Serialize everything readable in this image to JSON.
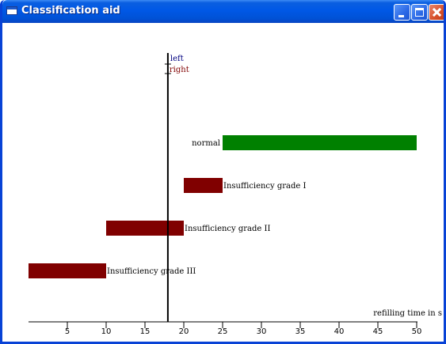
{
  "window": {
    "title": "Classification aid"
  },
  "chart_data": {
    "type": "bar",
    "title": "",
    "xlabel": "refilling time in s",
    "xlim": [
      0,
      50
    ],
    "x_ticks": [
      5,
      10,
      15,
      20,
      25,
      30,
      35,
      40,
      45,
      50
    ],
    "grid": false,
    "bars": [
      {
        "label": "normal",
        "start": 25,
        "end": 50,
        "color": "#008000"
      },
      {
        "label": "Insufficiency grade I",
        "start": 20,
        "end": 25,
        "color": "#800000"
      },
      {
        "label": "Insufficiency grade II",
        "start": 10,
        "end": 20,
        "color": "#800000"
      },
      {
        "label": "Insufficiency grade III",
        "start": 0,
        "end": 10,
        "color": "#800000"
      }
    ],
    "marker": {
      "value": 18,
      "left_label": "left",
      "right_label": "right",
      "left_color": "#000080",
      "right_color": "#800000"
    }
  }
}
